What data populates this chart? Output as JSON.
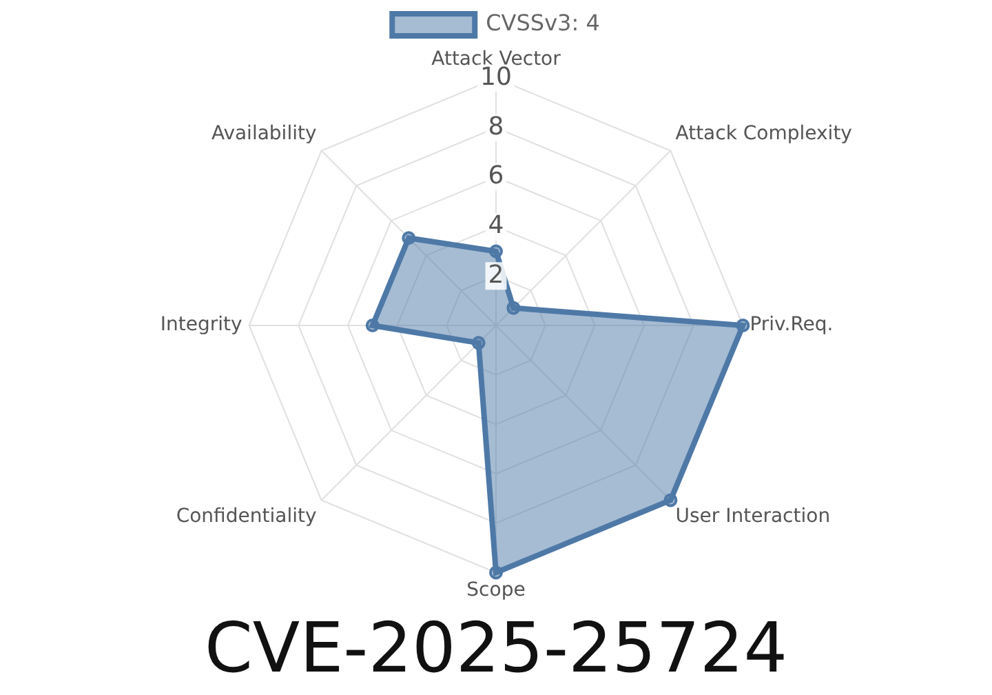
{
  "chart_data": {
    "type": "radar",
    "title": "CVE-2025-25724",
    "categories": [
      "Attack Vector",
      "Attack Complexity",
      "Priv.Req.",
      "User Interaction",
      "Scope",
      "Confidentiality",
      "Integrity",
      "Availability"
    ],
    "series": [
      {
        "name": "CVSSv3: 4",
        "color": "#4e79a7",
        "values": [
          3,
          1,
          10,
          10,
          10,
          1,
          5,
          5
        ]
      }
    ],
    "ylim": [
      0,
      10
    ],
    "yticks": [
      2,
      4,
      6,
      8,
      10
    ],
    "grid": true,
    "legend": "top",
    "marker": "circle"
  }
}
